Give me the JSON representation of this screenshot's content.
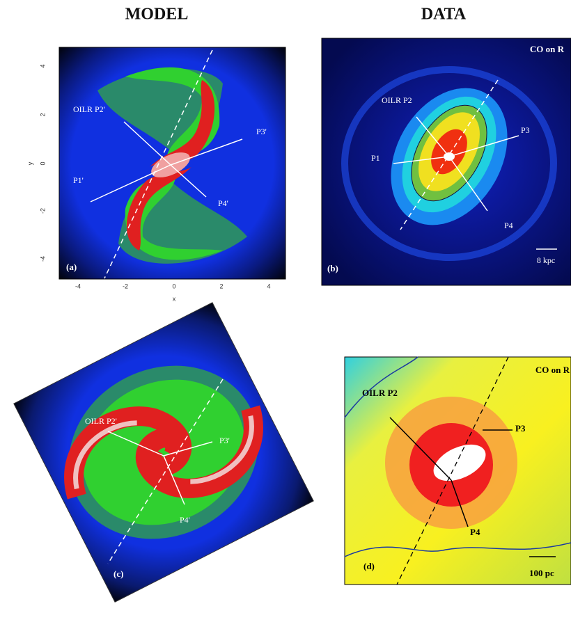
{
  "headers": {
    "model": "MODEL",
    "data": "DATA"
  },
  "panels": [
    {
      "label": "(a)",
      "x_label": "x",
      "y_label": "y",
      "x_ticks": [
        "-4",
        "-2",
        "0",
        "2",
        "4"
      ],
      "y_ticks": [
        "4",
        "2",
        "0",
        "-2",
        "-4"
      ],
      "annotations": [
        "OILR P2'",
        "P3'",
        "P1'",
        "P4'"
      ]
    },
    {
      "label": "(b)",
      "title": "CO on R",
      "scale": "8 kpc",
      "annotations": [
        "OILR P2",
        "P3",
        "P1",
        "P4"
      ]
    },
    {
      "label": "(c)",
      "annotations": [
        "OILR P2'",
        "P3'",
        "P4'"
      ]
    },
    {
      "label": "(d)",
      "title": "CO on R",
      "scale": "100 pc",
      "annotations": [
        "OILR P2",
        "P3",
        "P4"
      ]
    }
  ]
}
